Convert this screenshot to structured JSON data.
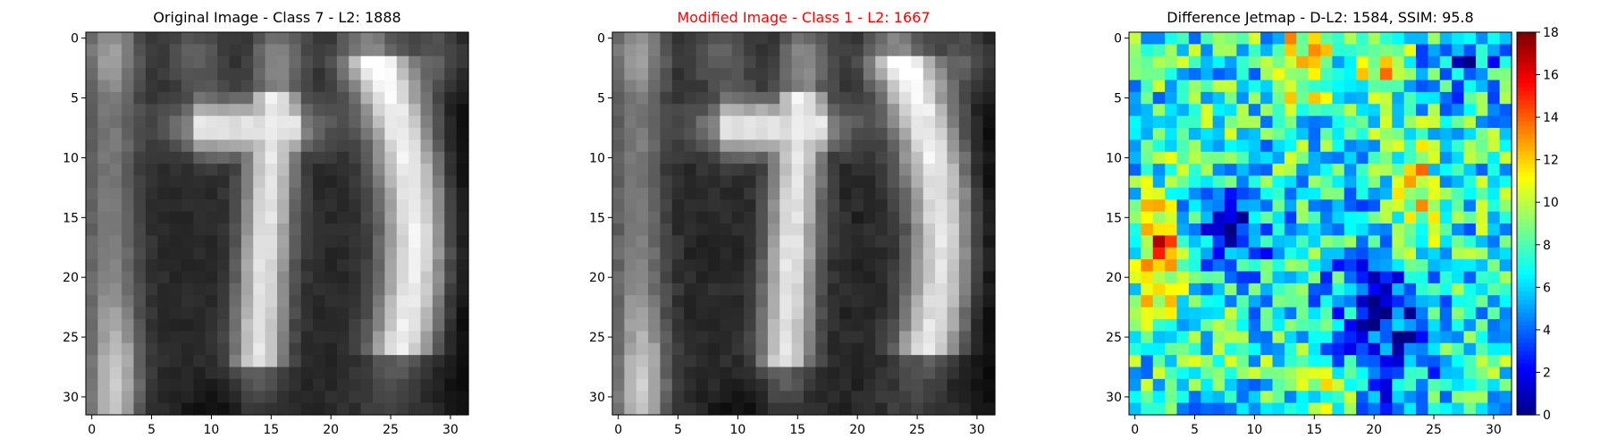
{
  "figure": {
    "background": "#ffffff"
  },
  "chart_data": [
    {
      "type": "heatmap",
      "title": "Original Image - Class 7 - L2: 1888",
      "title_color": "#000000",
      "colormap": "gray",
      "grid": false,
      "xlim": [
        -0.5,
        31.5
      ],
      "ylim": [
        31.5,
        -0.5
      ],
      "xticks": [
        0,
        5,
        10,
        15,
        20,
        25,
        30
      ],
      "yticks": [
        0,
        5,
        10,
        15,
        20,
        25,
        30
      ],
      "grid_size": [
        32,
        32
      ],
      "description_of_content": "grayscale digit pair with a bright vertical stroke near column 15 and a bright curved stroke near columns 24-28",
      "values_ref": "intensity"
    },
    {
      "type": "heatmap",
      "title": "Modified Image - Class 1 - L2: 1667",
      "title_color": "#ff0000",
      "colormap": "gray",
      "grid": false,
      "xlim": [
        -0.5,
        31.5
      ],
      "ylim": [
        31.5,
        -0.5
      ],
      "xticks": [
        0,
        5,
        10,
        15,
        20,
        25,
        30
      ],
      "yticks": [
        0,
        5,
        10,
        15,
        20,
        25,
        30
      ],
      "grid_size": [
        32,
        32
      ],
      "values_ref": "intensity"
    },
    {
      "type": "heatmap",
      "title": "Difference Jetmap - D-L2: 1584, SSIM: 95.8",
      "title_color": "#000000",
      "colormap": "jet",
      "grid": false,
      "xlim": [
        -0.5,
        31.5
      ],
      "ylim": [
        31.5,
        -0.5
      ],
      "xticks": [
        0,
        5,
        10,
        15,
        20,
        25,
        30
      ],
      "yticks": [
        0,
        5,
        10,
        15,
        20,
        25,
        30
      ],
      "grid_size": [
        32,
        32
      ],
      "colorbar": {
        "range": [
          0,
          18
        ],
        "ticks": [
          0,
          2,
          4,
          6,
          8,
          10,
          12,
          14,
          16,
          18
        ]
      },
      "values_ref": "difference"
    }
  ]
}
